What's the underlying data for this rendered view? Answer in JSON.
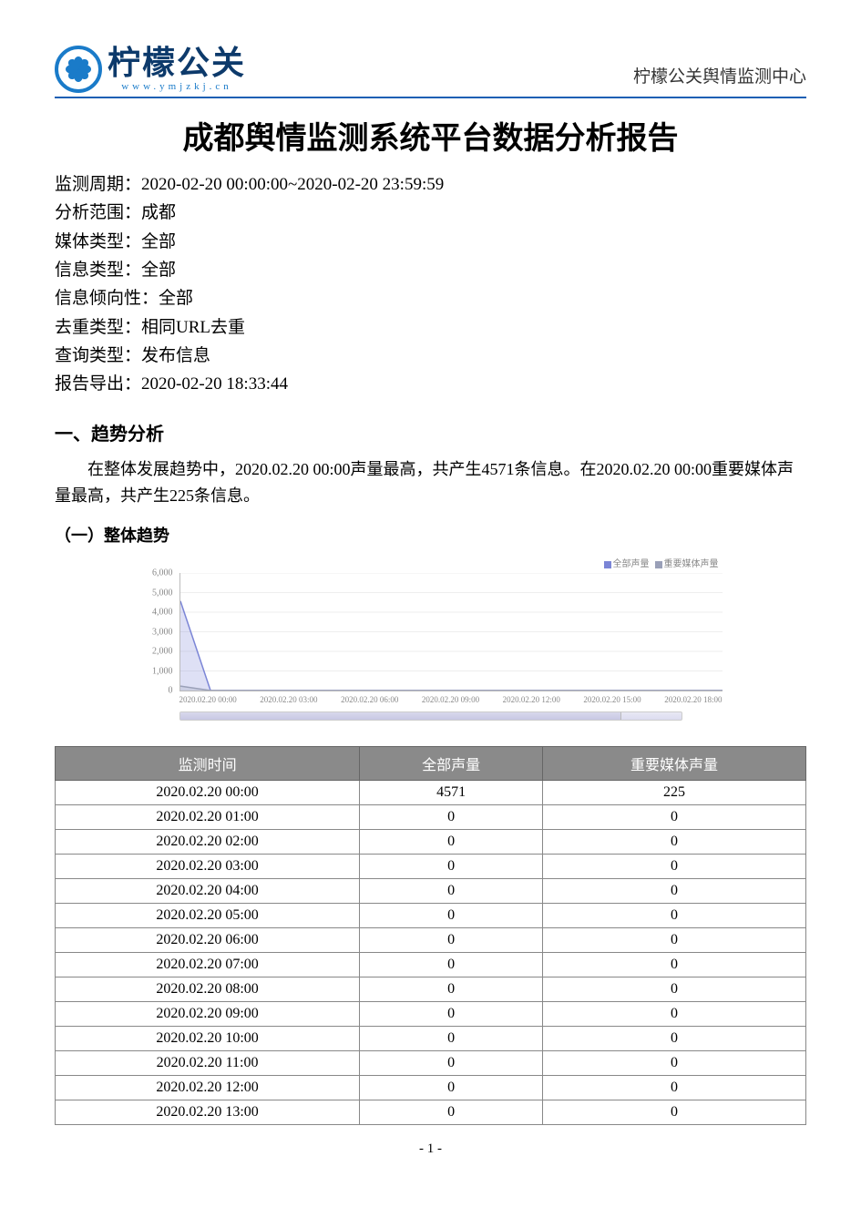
{
  "header": {
    "logo_text": "柠檬公关",
    "logo_url": "www.ymjzkj.cn",
    "org_name": "柠檬公关舆情监测中心",
    "logo_circle_color": "#1a7bc9",
    "logo_text_color": "#0d3a6b",
    "divider_color": "#1a5fb4"
  },
  "title": "成都舆情监测系统平台数据分析报告",
  "meta": [
    {
      "label": "监测周期：",
      "value": "2020-02-20 00:00:00~2020-02-20 23:59:59"
    },
    {
      "label": "分析范围：",
      "value": "成都"
    },
    {
      "label": "媒体类型：",
      "value": "全部"
    },
    {
      "label": "信息类型：",
      "value": "全部"
    },
    {
      "label": "信息倾向性：",
      "value": "全部"
    },
    {
      "label": "去重类型：",
      "value": "相同URL去重"
    },
    {
      "label": "查询类型：",
      "value": "发布信息"
    },
    {
      "label": "报告导出：",
      "value": "2020-02-20 18:33:44"
    }
  ],
  "section1": {
    "heading": "一、趋势分析",
    "body": "在整体发展趋势中，2020.02.20 00:00声量最高，共产生4571条信息。在2020.02.20 00:00重要媒体声量最高，共产生225条信息。",
    "sub_heading": "（一）整体趋势"
  },
  "chart": {
    "type": "line-area",
    "legend": [
      {
        "label": "全部声量",
        "color": "#7b85d6"
      },
      {
        "label": "重要媒体声量",
        "color": "#9aa0b8"
      }
    ],
    "background_color": "#ffffff",
    "grid_color": "#dddddd",
    "axis_color": "#bbbbbb",
    "label_color": "#888888",
    "label_fontsize": 10,
    "ylim": [
      0,
      6000
    ],
    "ytick_step": 1000,
    "yticks": [
      0,
      1000,
      2000,
      3000,
      4000,
      5000,
      6000
    ],
    "ylabels": [
      "0",
      "1,000",
      "2,000",
      "3,000",
      "4,000",
      "5,000",
      "6,000"
    ],
    "xlabels": [
      "2020.02.20 00:00",
      "2020.02.20 03:00",
      "2020.02.20 06:00",
      "2020.02.20 09:00",
      "2020.02.20 12:00",
      "2020.02.20 15:00",
      "2020.02.20 18:00"
    ],
    "series_all": {
      "color": "#7b85d6",
      "fill_opacity": 0.25,
      "line_width": 1.5,
      "points": [
        4571,
        0,
        0,
        0,
        0,
        0,
        0,
        0,
        0,
        0,
        0,
        0,
        0,
        0,
        0,
        0,
        0,
        0,
        0
      ]
    },
    "series_important": {
      "color": "#9aa0b8",
      "fill_opacity": 0.25,
      "line_width": 1.5,
      "points": [
        225,
        0,
        0,
        0,
        0,
        0,
        0,
        0,
        0,
        0,
        0,
        0,
        0,
        0,
        0,
        0,
        0,
        0,
        0
      ]
    },
    "scrollbar": {
      "track_color": "#e8e8f4",
      "thumb_color": "#d0d0e8",
      "thumb_ratio": 0.88
    }
  },
  "table": {
    "header_bg": "#8a8a8a",
    "header_fg": "#ffffff",
    "border_color": "#888888",
    "columns": [
      "监测时间",
      "全部声量",
      "重要媒体声量"
    ],
    "rows": [
      [
        "2020.02.20 00:00",
        "4571",
        "225"
      ],
      [
        "2020.02.20 01:00",
        "0",
        "0"
      ],
      [
        "2020.02.20 02:00",
        "0",
        "0"
      ],
      [
        "2020.02.20 03:00",
        "0",
        "0"
      ],
      [
        "2020.02.20 04:00",
        "0",
        "0"
      ],
      [
        "2020.02.20 05:00",
        "0",
        "0"
      ],
      [
        "2020.02.20 06:00",
        "0",
        "0"
      ],
      [
        "2020.02.20 07:00",
        "0",
        "0"
      ],
      [
        "2020.02.20 08:00",
        "0",
        "0"
      ],
      [
        "2020.02.20 09:00",
        "0",
        "0"
      ],
      [
        "2020.02.20 10:00",
        "0",
        "0"
      ],
      [
        "2020.02.20 11:00",
        "0",
        "0"
      ],
      [
        "2020.02.20 12:00",
        "0",
        "0"
      ],
      [
        "2020.02.20 13:00",
        "0",
        "0"
      ]
    ]
  },
  "footer": {
    "page_label": "- 1 -"
  }
}
